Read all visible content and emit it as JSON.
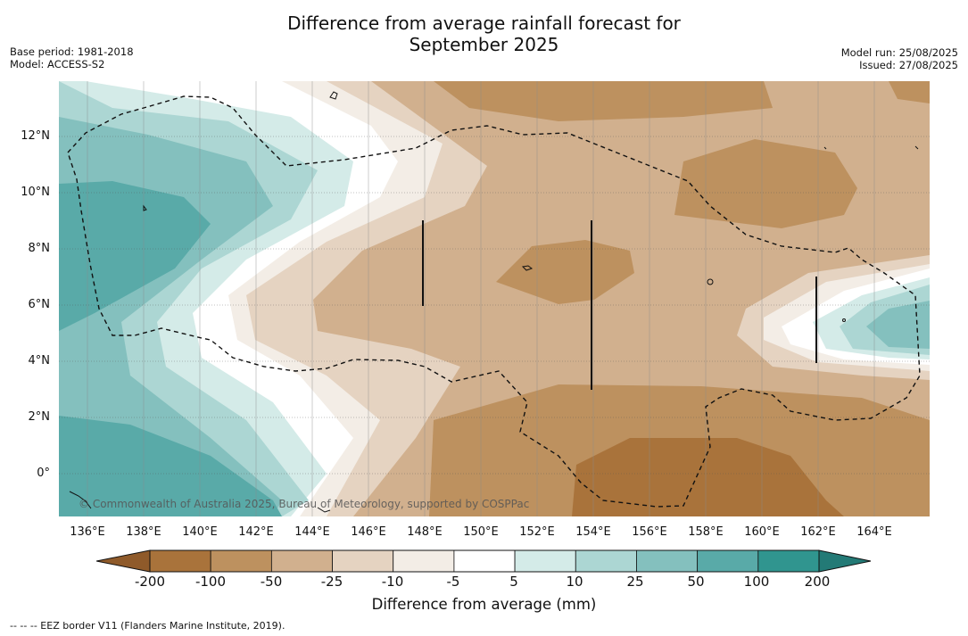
{
  "title_line1": "Difference from average rainfall forecast for",
  "title_line2": "September 2025",
  "meta_left": {
    "base_period": "Base period: 1981-2018",
    "model": "Model: ACCESS-S2"
  },
  "meta_right": {
    "model_run": "Model run: 25/08/2025",
    "issued": "Issued: 27/08/2025"
  },
  "y_ticks": [
    "12°N",
    "10°N",
    "8°N",
    "6°N",
    "4°N",
    "2°N",
    "0°"
  ],
  "x_ticks": [
    "136°E",
    "138°E",
    "140°E",
    "142°E",
    "144°E",
    "146°E",
    "148°E",
    "150°E",
    "152°E",
    "154°E",
    "156°E",
    "158°E",
    "160°E",
    "162°E",
    "164°E"
  ],
  "copyright": "© Commonwealth of Australia 2025, Bureau of Meteorology, supported by COSPPac",
  "colorbar": {
    "title": "Difference from average (mm)",
    "labels": [
      "-200",
      "-100",
      "-50",
      "-25",
      "-10",
      "-5",
      "5",
      "10",
      "25",
      "50",
      "100",
      "200"
    ],
    "colors": [
      "#a9733b",
      "#bd915f",
      "#d1b08e",
      "#e5d3c1",
      "#f3ede6",
      "#ffffff",
      "#d4ebe8",
      "#acd6d3",
      "#84c0be",
      "#59aaa8",
      "#30958f"
    ],
    "under_color": "#8f5a2a",
    "over_color": "#237a76"
  },
  "legend_footer": "-- -- -- EEZ border V11 (Flanders Marine Institute, 2019)."
}
